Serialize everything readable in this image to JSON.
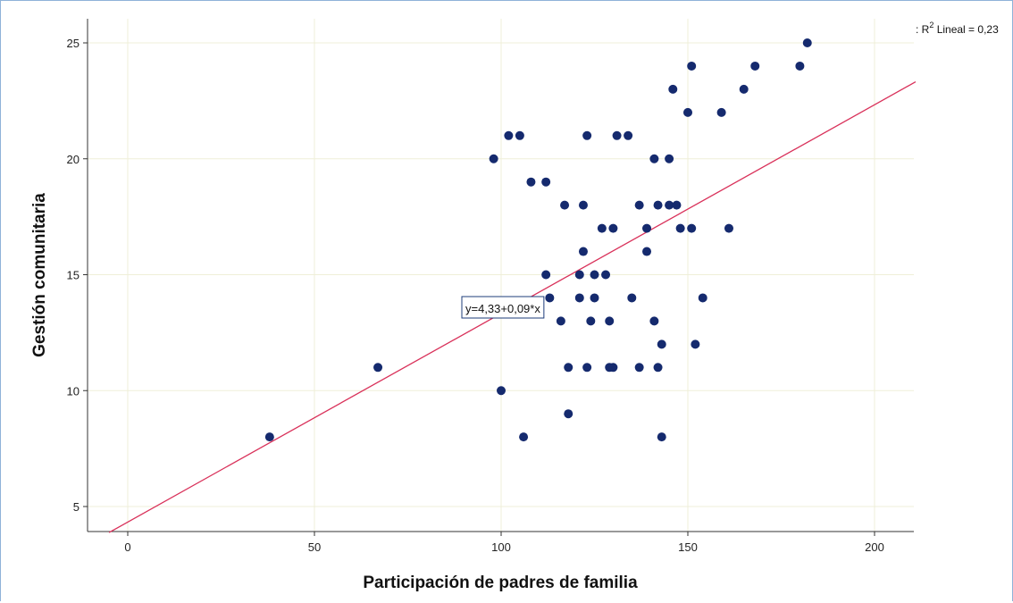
{
  "chart_data": {
    "type": "scatter",
    "title": "",
    "xlabel": "Participación de padres de familia",
    "ylabel": "Gestión comunitaria",
    "xlim": [
      -10,
      211
    ],
    "ylim": [
      4,
      26
    ],
    "x_ticks": [
      0,
      50,
      100,
      150,
      200
    ],
    "y_ticks": [
      5,
      10,
      15,
      20,
      25
    ],
    "grid": true,
    "colors": {
      "points": "#152a6e",
      "fit_line": "#d9315a",
      "grid": "#efefd8",
      "axis": "#333333"
    },
    "fit_line": {
      "intercept": 4.33,
      "slope": 0.09,
      "x_range": [
        -5,
        211
      ]
    },
    "equation_label": "y=4,33+0,09*x",
    "legend": {
      "prefix": ": R",
      "superscript": "2",
      "suffix": " Lineal = 0,23",
      "position": "top-right"
    },
    "points": [
      {
        "x": 38,
        "y": 8
      },
      {
        "x": 67,
        "y": 11
      },
      {
        "x": 98,
        "y": 20
      },
      {
        "x": 100,
        "y": 10
      },
      {
        "x": 102,
        "y": 21
      },
      {
        "x": 105,
        "y": 21
      },
      {
        "x": 106,
        "y": 8
      },
      {
        "x": 108,
        "y": 19
      },
      {
        "x": 112,
        "y": 19
      },
      {
        "x": 112,
        "y": 15
      },
      {
        "x": 113,
        "y": 14
      },
      {
        "x": 116,
        "y": 13
      },
      {
        "x": 117,
        "y": 18
      },
      {
        "x": 118,
        "y": 11
      },
      {
        "x": 118,
        "y": 9
      },
      {
        "x": 121,
        "y": 15
      },
      {
        "x": 121,
        "y": 14
      },
      {
        "x": 122,
        "y": 18
      },
      {
        "x": 122,
        "y": 16
      },
      {
        "x": 123,
        "y": 21
      },
      {
        "x": 123,
        "y": 11
      },
      {
        "x": 124,
        "y": 13
      },
      {
        "x": 125,
        "y": 15
      },
      {
        "x": 125,
        "y": 14
      },
      {
        "x": 127,
        "y": 17
      },
      {
        "x": 128,
        "y": 15
      },
      {
        "x": 129,
        "y": 13
      },
      {
        "x": 129,
        "y": 11
      },
      {
        "x": 130,
        "y": 17
      },
      {
        "x": 130,
        "y": 11
      },
      {
        "x": 131,
        "y": 21
      },
      {
        "x": 134,
        "y": 21
      },
      {
        "x": 135,
        "y": 14
      },
      {
        "x": 137,
        "y": 18
      },
      {
        "x": 137,
        "y": 11
      },
      {
        "x": 139,
        "y": 17
      },
      {
        "x": 139,
        "y": 16
      },
      {
        "x": 141,
        "y": 20
      },
      {
        "x": 141,
        "y": 13
      },
      {
        "x": 142,
        "y": 18
      },
      {
        "x": 142,
        "y": 11
      },
      {
        "x": 143,
        "y": 12
      },
      {
        "x": 143,
        "y": 8
      },
      {
        "x": 145,
        "y": 20
      },
      {
        "x": 145,
        "y": 18
      },
      {
        "x": 146,
        "y": 23
      },
      {
        "x": 147,
        "y": 18
      },
      {
        "x": 148,
        "y": 17
      },
      {
        "x": 150,
        "y": 22
      },
      {
        "x": 151,
        "y": 24
      },
      {
        "x": 151,
        "y": 17
      },
      {
        "x": 152,
        "y": 12
      },
      {
        "x": 154,
        "y": 14
      },
      {
        "x": 159,
        "y": 22
      },
      {
        "x": 161,
        "y": 17
      },
      {
        "x": 165,
        "y": 23
      },
      {
        "x": 168,
        "y": 24
      },
      {
        "x": 180,
        "y": 24
      },
      {
        "x": 182,
        "y": 25
      }
    ]
  }
}
